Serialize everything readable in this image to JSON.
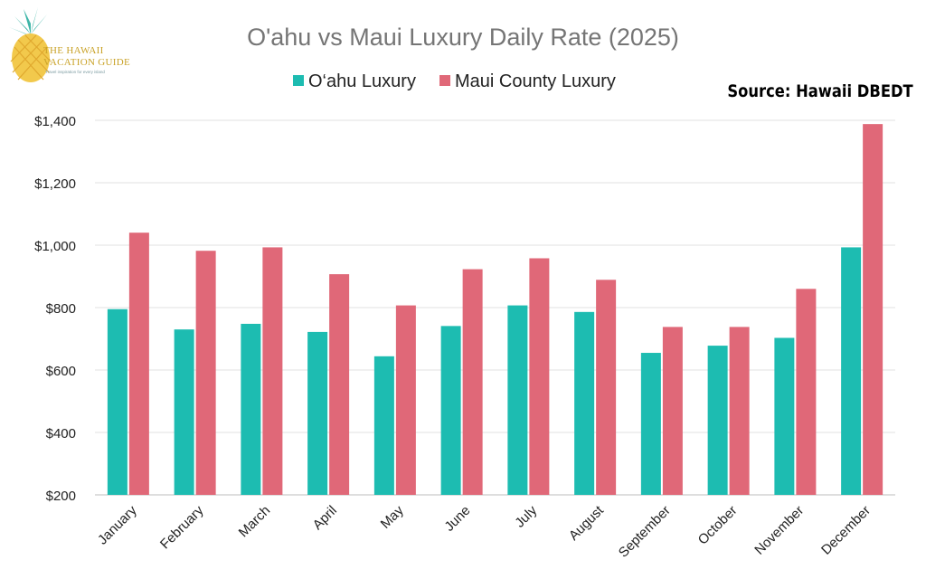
{
  "logo": {
    "line1": "THE HAWAII",
    "line2": "VACATION GUIDE",
    "tagline": "Travel inspiration for every island",
    "icon": "pineapple-icon"
  },
  "source_note": "Source: Hawaii DBEDT",
  "colors": {
    "oahu": "#1dbcb1",
    "maui": "#e06878",
    "grid": "#e2e2e2",
    "title": "#757575",
    "text": "#222222"
  },
  "chart_data": {
    "type": "bar",
    "title": "O'ahu vs Maui Luxury Daily Rate (2025)",
    "xlabel": "",
    "ylabel": "",
    "ylim": [
      200,
      1400
    ],
    "yticks": [
      200,
      400,
      600,
      800,
      1000,
      1200,
      1400
    ],
    "ytick_labels": [
      "$200",
      "$400",
      "$600",
      "$800",
      "$1,000",
      "$1,200",
      "$1,400"
    ],
    "grid": true,
    "legend_position": "top",
    "categories": [
      "January",
      "February",
      "March",
      "April",
      "May",
      "June",
      "July",
      "August",
      "September",
      "October",
      "November",
      "December"
    ],
    "series": [
      {
        "name": "O‘ahu Luxury",
        "color": "#1dbcb1",
        "values": [
          795,
          730,
          748,
          722,
          644,
          741,
          807,
          786,
          655,
          678,
          703,
          993
        ]
      },
      {
        "name": "Maui County Luxury",
        "color": "#e06878",
        "values": [
          1040,
          982,
          993,
          907,
          807,
          923,
          958,
          889,
          738,
          738,
          860,
          1388
        ]
      }
    ]
  }
}
